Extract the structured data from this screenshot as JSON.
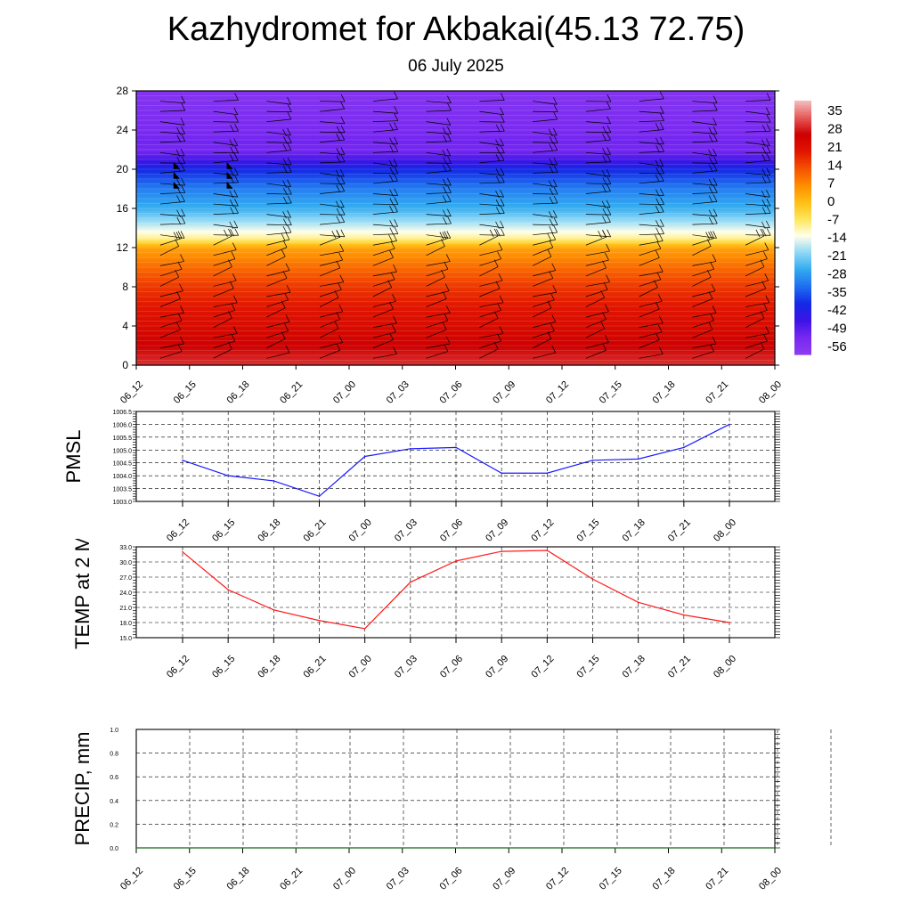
{
  "title": "Kazhydromet for Akbakai(45.13 72.75)",
  "subtitle": "06 July 2025",
  "colors": {
    "pmsl_line": "#1a1aff",
    "temp_line": "#ff1a1a",
    "precip_line": "#1f7a1f",
    "grid": "#000000"
  },
  "time_labels": [
    "06_12",
    "06_15",
    "06_18",
    "06_21",
    "07_00",
    "07_03",
    "07_06",
    "07_09",
    "07_12",
    "07_15",
    "07_18",
    "07_21",
    "08_00"
  ],
  "chart_data": [
    {
      "type": "heatmap",
      "name": "upper-air temperature cross section with wind barbs",
      "x": [
        "06_12",
        "06_15",
        "06_18",
        "06_21",
        "07_00",
        "07_03",
        "07_06",
        "07_09",
        "07_12",
        "07_15",
        "07_18",
        "07_21",
        "08_00"
      ],
      "ylim": [
        0,
        28
      ],
      "yticks": [
        0,
        4,
        8,
        12,
        16,
        20,
        24,
        28
      ],
      "colorbar": {
        "labels": [
          "35",
          "28",
          "21",
          "14",
          "7",
          "0",
          "-7",
          "-14",
          "-21",
          "-28",
          "-35",
          "-42",
          "-49",
          "-56"
        ],
        "range": [
          -63,
          42
        ]
      },
      "temperature_profile": [
        {
          "level": 0,
          "value": 32
        },
        {
          "level": 2,
          "value": 28
        },
        {
          "level": 4,
          "value": 24
        },
        {
          "level": 6,
          "value": 21
        },
        {
          "level": 8,
          "value": 17
        },
        {
          "level": 10,
          "value": 11
        },
        {
          "level": 12,
          "value": 4
        },
        {
          "level": 13,
          "value": -10
        },
        {
          "level": 14,
          "value": -16
        },
        {
          "level": 16,
          "value": -27
        },
        {
          "level": 18,
          "value": -33
        },
        {
          "level": 20,
          "value": -42
        },
        {
          "level": 21,
          "value": -50
        },
        {
          "level": 22,
          "value": -56
        },
        {
          "level": 23,
          "value": -55
        },
        {
          "level": 24,
          "value": -57
        },
        {
          "level": 28,
          "value": -60
        }
      ]
    },
    {
      "type": "line",
      "ylabel": "PMSL",
      "x": [
        "06_12",
        "06_15",
        "06_18",
        "06_21",
        "07_00",
        "07_03",
        "07_06",
        "07_09",
        "07_12",
        "07_15",
        "07_18",
        "07_21",
        "08_00"
      ],
      "values": [
        1004.6,
        1004.0,
        1003.8,
        1003.2,
        1004.75,
        1005.05,
        1005.1,
        1004.1,
        1004.1,
        1004.6,
        1004.65,
        1005.1,
        1006.0
      ],
      "ylim": [
        1003.0,
        1006.5
      ],
      "yticks": [
        "1003.0",
        "1003.5",
        "1004.0",
        "1004.5",
        "1005.0",
        "1005.5",
        "1006.0",
        "1006.5"
      ]
    },
    {
      "type": "line",
      "ylabel": "TEMP at 2 M",
      "x": [
        "06_12",
        "06_15",
        "06_18",
        "06_21",
        "07_00",
        "07_03",
        "07_06",
        "07_09",
        "07_12",
        "07_15",
        "07_18",
        "07_21",
        "08_00"
      ],
      "values": [
        32.0,
        24.5,
        20.5,
        18.4,
        16.8,
        26.0,
        30.2,
        32.1,
        32.3,
        26.6,
        22.0,
        19.5,
        18.0
      ],
      "ylim": [
        15.0,
        33.0
      ],
      "yticks": [
        "15.0",
        "18.0",
        "21.0",
        "24.0",
        "27.0",
        "30.0",
        "33.0"
      ]
    },
    {
      "type": "line",
      "ylabel": "PRECIP, mm",
      "x": [
        "06_12",
        "06_15",
        "06_18",
        "06_21",
        "07_00",
        "07_03",
        "07_06",
        "07_09",
        "07_12",
        "07_15",
        "07_18",
        "07_21",
        "08_00"
      ],
      "values": [
        0,
        0,
        0,
        0,
        0,
        0,
        0,
        0,
        0,
        0,
        0,
        0,
        0
      ],
      "ylim": [
        0,
        1
      ],
      "yticks": [
        "0.0",
        "0.2",
        "0.4",
        "0.6",
        "0.8",
        "1.0"
      ]
    }
  ]
}
